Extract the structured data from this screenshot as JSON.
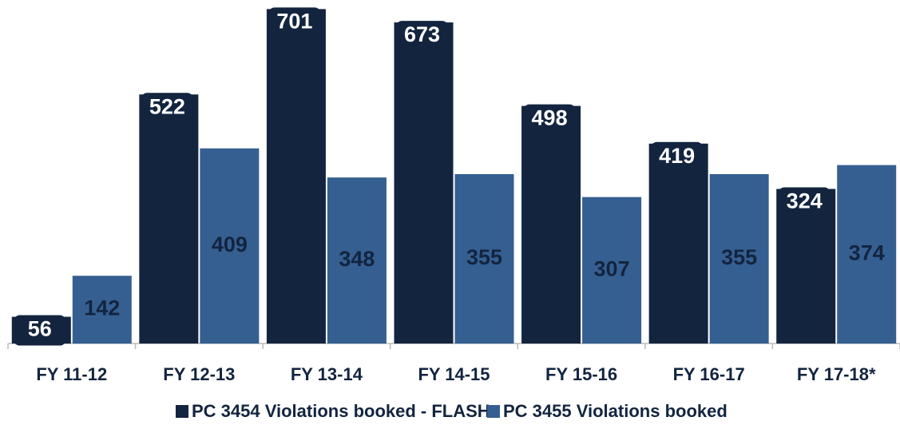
{
  "chart_data": {
    "type": "bar",
    "categories": [
      "FY 11-12",
      "FY 12-13",
      "FY 13-14",
      "FY 14-15",
      "FY 15-16",
      "FY 16-17",
      "FY 17-18*"
    ],
    "series": [
      {
        "name": "PC 3454 Violations booked - FLASH",
        "color": "#13243f",
        "values": [
          56,
          522,
          701,
          673,
          498,
          419,
          324
        ]
      },
      {
        "name": "PC 3455 Violations booked",
        "color": "#355f91",
        "values": [
          142,
          409,
          348,
          355,
          307,
          355,
          374
        ]
      }
    ],
    "ylim": [
      0,
      720
    ]
  }
}
